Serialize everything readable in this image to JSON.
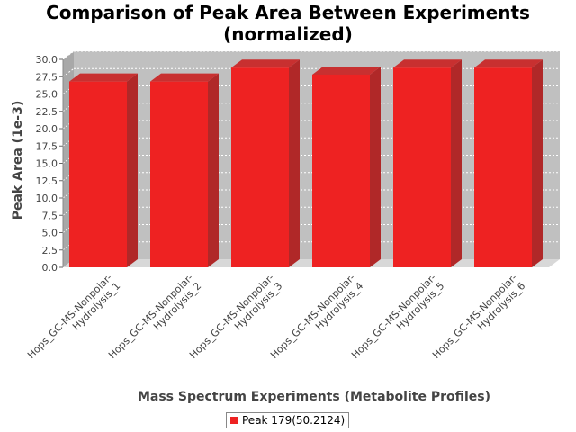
{
  "chart_data": {
    "type": "bar",
    "title": "Comparison of Peak Area Between Experiments",
    "subtitle": "(normalized)",
    "xlabel": "Mass Spectrum Experiments (Metabolite Profiles)",
    "ylabel": "Peak Area (1e-3)",
    "ylim": [
      0,
      30
    ],
    "yticks": [
      "0.0",
      "2.5",
      "5.0",
      "7.5",
      "10.0",
      "12.5",
      "15.0",
      "17.5",
      "20.0",
      "22.5",
      "25.0",
      "27.5",
      "30.0"
    ],
    "categories": [
      [
        "Hops_GC-MS-Nonpolar-",
        "Hydrolysis_1"
      ],
      [
        "Hops_GC-MS-Nonpolar-",
        "Hydrolysis_2"
      ],
      [
        "Hops_GC-MS-Nonpolar-",
        "Hydrolysis_3"
      ],
      [
        "Hops_GC-MS-Nonpolar-",
        "Hydrolysis_4"
      ],
      [
        "Hops_GC-MS-Nonpolar-",
        "Hydrolysis_5"
      ],
      [
        "Hops_GC-MS-Nonpolar-",
        "Hydrolysis_6"
      ]
    ],
    "series": [
      {
        "name": "Peak 179(50.2124)",
        "color": "#ee2222",
        "values": [
          26.8,
          26.8,
          28.8,
          27.8,
          28.8,
          28.8
        ]
      }
    ],
    "grid": true,
    "legend_position": "bottom"
  }
}
